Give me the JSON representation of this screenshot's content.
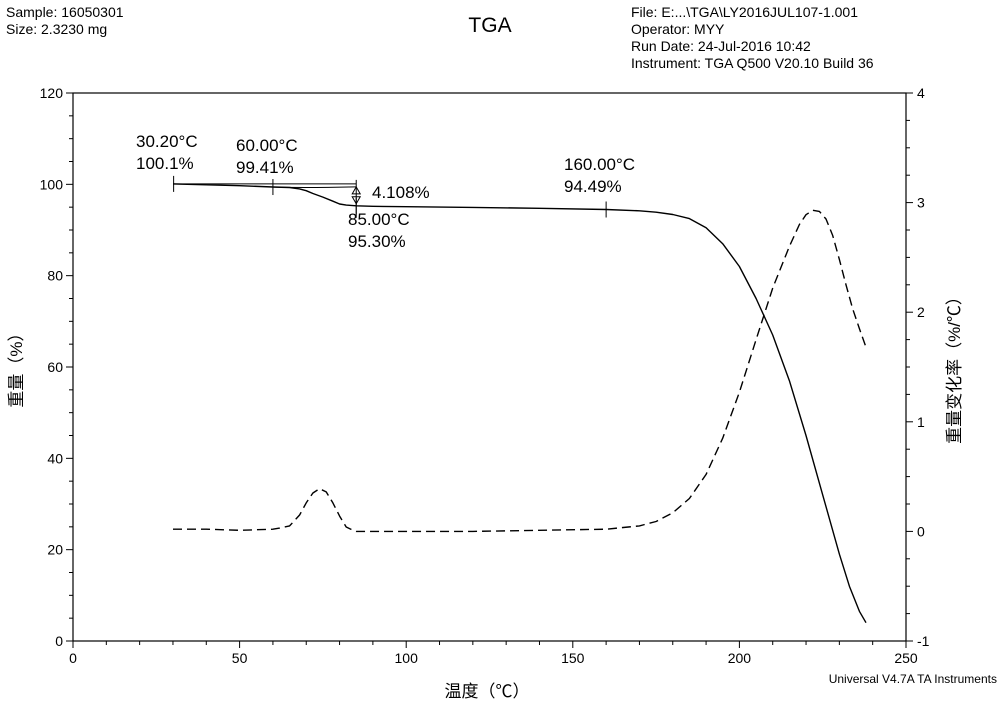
{
  "header": {
    "left": [
      "Sample: 16050301",
      "Size:  2.3230 mg"
    ],
    "title": "TGA",
    "right": [
      "File: E:...\\TGA\\LY2016JUL107-1.001",
      "Operator: MYY",
      "Run Date: 24-Jul-2016 10:42",
      "Instrument: TGA Q500 V20.10 Build 36"
    ]
  },
  "footer": "Universal V4.7A TA Instruments",
  "chart_data": {
    "type": "line",
    "title": "TGA",
    "xlabel": "温度（℃）",
    "ylabel_left": "重量（%）",
    "ylabel_right": "重量变化率（%/℃）",
    "xlim": [
      0,
      250
    ],
    "ylim_left": [
      0,
      120
    ],
    "ylim_right": [
      -1,
      4
    ],
    "xticks": [
      0,
      50,
      100,
      150,
      200,
      250
    ],
    "yticks_left": [
      0,
      20,
      40,
      60,
      80,
      100,
      120
    ],
    "yticks_right": [
      -1,
      0,
      1,
      2,
      3,
      4
    ],
    "grid": false,
    "series": [
      {
        "style": "solid",
        "axis": "left",
        "color": "#000000",
        "x": [
          30,
          40,
          50,
          60,
          65,
          68,
          70,
          72,
          75,
          78,
          80,
          82,
          85,
          90,
          100,
          120,
          140,
          160,
          170,
          175,
          180,
          185,
          190,
          195,
          200,
          205,
          210,
          215,
          220,
          225,
          230,
          233,
          236,
          238
        ],
        "y": [
          100.1,
          99.9,
          99.7,
          99.41,
          99.3,
          99.0,
          98.6,
          98.0,
          97.2,
          96.3,
          95.7,
          95.45,
          95.3,
          95.2,
          95.1,
          94.95,
          94.75,
          94.49,
          94.2,
          93.9,
          93.4,
          92.5,
          90.5,
          87.0,
          82.0,
          75.0,
          67.0,
          57.0,
          45.0,
          32.0,
          19.0,
          12.0,
          6.5,
          4.0
        ]
      },
      {
        "style": "dashed",
        "axis": "right",
        "color": "#000000",
        "x": [
          30,
          40,
          50,
          60,
          62,
          65,
          68,
          70,
          72,
          74,
          76,
          78,
          80,
          82,
          84,
          85,
          90,
          100,
          120,
          140,
          160,
          170,
          175,
          180,
          185,
          190,
          195,
          200,
          205,
          210,
          215,
          218,
          220,
          222,
          224,
          226,
          228,
          230,
          232,
          234,
          236,
          238
        ],
        "y": [
          0.02,
          0.02,
          0.01,
          0.02,
          0.03,
          0.05,
          0.15,
          0.26,
          0.35,
          0.39,
          0.36,
          0.26,
          0.14,
          0.04,
          0.01,
          0.0,
          0.0,
          0.0,
          0.0,
          0.01,
          0.02,
          0.05,
          0.09,
          0.17,
          0.3,
          0.52,
          0.85,
          1.27,
          1.75,
          2.22,
          2.6,
          2.8,
          2.89,
          2.93,
          2.92,
          2.85,
          2.7,
          2.48,
          2.25,
          2.03,
          1.85,
          1.68
        ]
      }
    ],
    "annotations": [
      {
        "lines": [
          "30.20°C",
          "100.1%"
        ]
      },
      {
        "lines": [
          "60.00°C",
          "99.41%"
        ]
      },
      {
        "lines": [
          "85.00°C",
          "95.30%"
        ]
      },
      {
        "lines": [
          "160.00°C",
          "94.49%"
        ]
      },
      {
        "lines": [
          "4.108%"
        ]
      }
    ]
  }
}
